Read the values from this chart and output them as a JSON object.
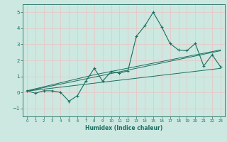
{
  "xlabel": "Humidex (Indice chaleur)",
  "ylabel": "",
  "bg_color": "#cce8e0",
  "grid_color": "#e8c8c8",
  "line_color": "#1a6e60",
  "xlim": [
    -0.5,
    23.5
  ],
  "ylim": [
    -1.5,
    5.5
  ],
  "xticks": [
    0,
    1,
    2,
    3,
    4,
    5,
    6,
    7,
    8,
    9,
    10,
    11,
    12,
    13,
    14,
    15,
    16,
    17,
    18,
    19,
    20,
    21,
    22,
    23
  ],
  "yticks": [
    -1,
    0,
    1,
    2,
    3,
    4,
    5
  ],
  "main_x": [
    0,
    1,
    2,
    3,
    4,
    5,
    6,
    7,
    8,
    9,
    10,
    11,
    12,
    13,
    14,
    15,
    16,
    17,
    18,
    19,
    20,
    21,
    22,
    23
  ],
  "main_y": [
    0.1,
    -0.05,
    0.1,
    0.1,
    0.0,
    -0.55,
    -0.2,
    0.7,
    1.5,
    0.7,
    1.3,
    1.2,
    1.35,
    3.5,
    4.15,
    5.0,
    4.1,
    3.05,
    2.65,
    2.6,
    3.05,
    1.65,
    2.35,
    1.6
  ],
  "trend1_x": [
    0,
    23
  ],
  "trend1_y": [
    0.08,
    2.6
  ],
  "trend2_x": [
    0,
    8,
    23
  ],
  "trend2_y": [
    0.1,
    1.1,
    2.65
  ],
  "trend3_x": [
    0,
    23
  ],
  "trend3_y": [
    0.08,
    1.5
  ]
}
